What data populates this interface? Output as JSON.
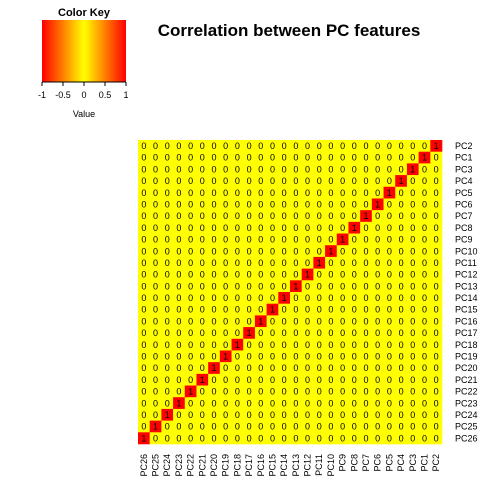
{
  "chart_data": {
    "type": "heatmap",
    "title": "Correlation between PC features",
    "row_labels": [
      "PC2",
      "PC1",
      "PC3",
      "PC4",
      "PC5",
      "PC6",
      "PC7",
      "PC8",
      "PC9",
      "PC10",
      "PC11",
      "PC12",
      "PC13",
      "PC14",
      "PC15",
      "PC16",
      "PC17",
      "PC18",
      "PC19",
      "PC20",
      "PC21",
      "PC22",
      "PC23",
      "PC24",
      "PC25",
      "PC26"
    ],
    "col_labels": [
      "PC26",
      "PC25",
      "PC24",
      "PC23",
      "PC22",
      "PC21",
      "PC20",
      "PC19",
      "PC18",
      "PC17",
      "PC16",
      "PC15",
      "PC14",
      "PC13",
      "PC12",
      "PC11",
      "PC10",
      "PC9",
      "PC8",
      "PC7",
      "PC6",
      "PC5",
      "PC4",
      "PC3",
      "PC1",
      "PC2"
    ],
    "diagonal_value": 1,
    "off_diagonal_value": 0,
    "value_range": [
      -1,
      1
    ],
    "colors": {
      "low": "#ff0000",
      "mid": "#ffff00",
      "high": "#ff0000",
      "cell_zero": "#ffff00",
      "cell_one": "#ff0000"
    },
    "color_key": {
      "title": "Color Key",
      "xlabel": "Value",
      "ticks": [
        "-1",
        "-0.5",
        "0",
        "0.5",
        "1"
      ]
    }
  }
}
